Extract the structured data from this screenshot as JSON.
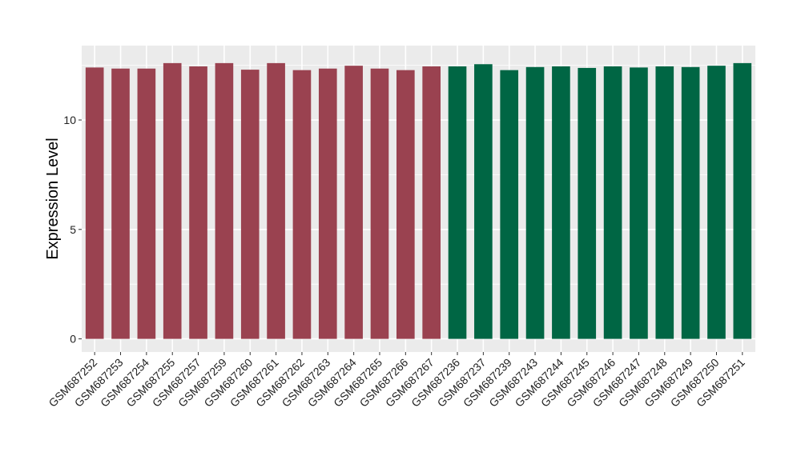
{
  "chart_data": {
    "type": "bar",
    "title": "",
    "xlabel": "",
    "ylabel": "Expression Level",
    "ylim": [
      -0.6,
      13.4
    ],
    "yticks": [
      0,
      5,
      10
    ],
    "grid": true,
    "legend": "none",
    "categories": [
      "GSM687252",
      "GSM687253",
      "GSM687254",
      "GSM687255",
      "GSM687257",
      "GSM687259",
      "GSM687260",
      "GSM687261",
      "GSM687262",
      "GSM687263",
      "GSM687264",
      "GSM687265",
      "GSM687266",
      "GSM687267",
      "GSM687236",
      "GSM687237",
      "GSM687239",
      "GSM687243",
      "GSM687244",
      "GSM687245",
      "GSM687246",
      "GSM687247",
      "GSM687248",
      "GSM687249",
      "GSM687250",
      "GSM687251"
    ],
    "values": [
      12.4,
      12.35,
      12.35,
      12.6,
      12.45,
      12.6,
      12.3,
      12.6,
      12.28,
      12.35,
      12.48,
      12.35,
      12.28,
      12.45,
      12.45,
      12.55,
      12.28,
      12.42,
      12.45,
      12.38,
      12.45,
      12.4,
      12.45,
      12.42,
      12.48,
      12.6
    ],
    "group_colors": [
      "#9a4250",
      "#9a4250",
      "#9a4250",
      "#9a4250",
      "#9a4250",
      "#9a4250",
      "#9a4250",
      "#9a4250",
      "#9a4250",
      "#9a4250",
      "#9a4250",
      "#9a4250",
      "#9a4250",
      "#9a4250",
      "#006644",
      "#006644",
      "#006644",
      "#006644",
      "#006644",
      "#006644",
      "#006644",
      "#006644",
      "#006644",
      "#006644",
      "#006644",
      "#006644"
    ],
    "panel_background": "#ebebeb",
    "gridline_color": "#ffffff"
  }
}
